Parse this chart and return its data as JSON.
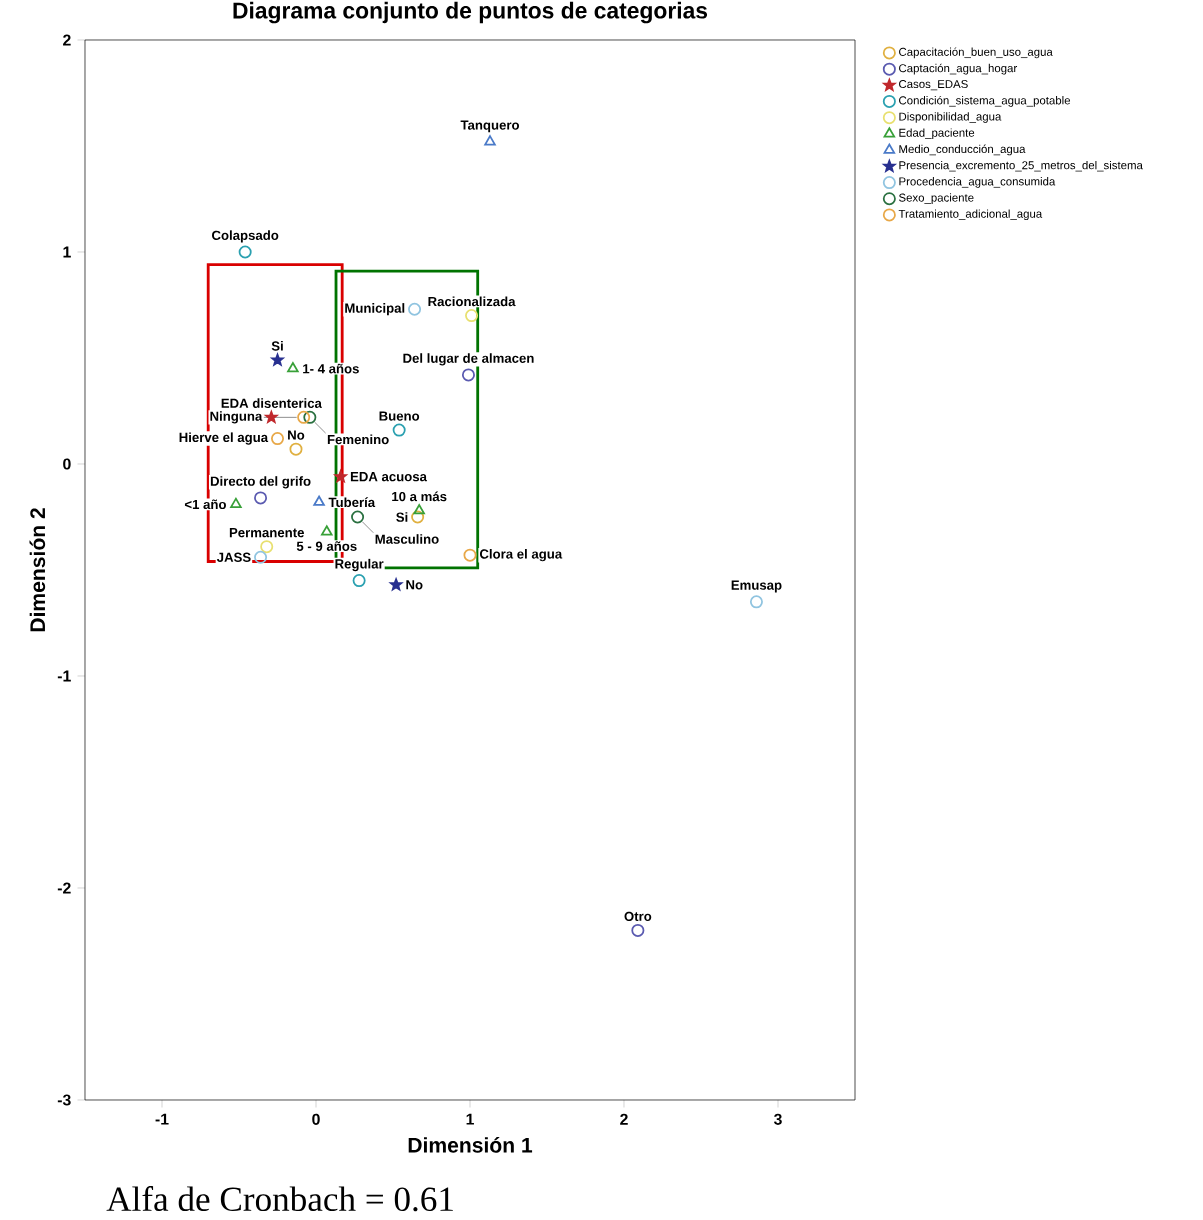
{
  "chart_data": {
    "type": "scatter",
    "title": "Diagrama conjunto de puntos de categorias",
    "xlabel": "Dimensión 1",
    "ylabel": "Dimensión 2",
    "xlim": [
      -1.5,
      3.5
    ],
    "ylim": [
      -3,
      2
    ],
    "xticks": [
      -1,
      0,
      1,
      2,
      3
    ],
    "yticks": [
      -3,
      -2,
      -1,
      0,
      1,
      2
    ],
    "legend": "right",
    "annotations": [
      {
        "text": "No",
        "x": -0.13,
        "y": 0.07
      },
      {
        "text": "Si",
        "x": 0.66,
        "y": -0.25
      },
      {
        "text": "Directo del grifo",
        "x": -0.36,
        "y": -0.16
      },
      {
        "text": "Del lugar de almacen",
        "x": 0.99,
        "y": 0.42
      },
      {
        "text": "Otro",
        "x": 2.09,
        "y": -2.2
      },
      {
        "text": "EDA disenterica",
        "x": -0.29,
        "y": 0.22
      },
      {
        "text": "EDA acuosa",
        "x": 0.16,
        "y": -0.06
      },
      {
        "text": "Colapsado",
        "x": -0.46,
        "y": 1.0
      },
      {
        "text": "Bueno",
        "x": 0.54,
        "y": 0.16
      },
      {
        "text": "Regular",
        "x": 0.28,
        "y": -0.55
      },
      {
        "text": "Permanente",
        "x": -0.32,
        "y": -0.39
      },
      {
        "text": "Racionalizada",
        "x": 1.01,
        "y": 0.7
      },
      {
        "text": "<1 año",
        "x": -0.52,
        "y": -0.19
      },
      {
        "text": "1- 4 años",
        "x": -0.15,
        "y": 0.45
      },
      {
        "text": "5 - 9 años",
        "x": 0.07,
        "y": -0.32
      },
      {
        "text": "10 a más",
        "x": 0.67,
        "y": -0.22
      },
      {
        "text": "Tanquero",
        "x": 1.13,
        "y": 1.52
      },
      {
        "text": "Tubería",
        "x": 0.02,
        "y": -0.18
      },
      {
        "text": "Si",
        "x": -0.25,
        "y": 0.49
      },
      {
        "text": "No",
        "x": 0.52,
        "y": -0.57
      },
      {
        "text": "Municipal",
        "x": 0.64,
        "y": 0.73
      },
      {
        "text": "Emusap",
        "x": 2.86,
        "y": -0.65
      },
      {
        "text": "JASS",
        "x": -0.36,
        "y": -0.44
      },
      {
        "text": "Femenino",
        "x": -0.04,
        "y": 0.22
      },
      {
        "text": "Masculino",
        "x": 0.27,
        "y": -0.25
      },
      {
        "text": "Hierve el agua",
        "x": -0.25,
        "y": 0.12
      },
      {
        "text": "Ninguna",
        "x": -0.08,
        "y": 0.22
      },
      {
        "text": "Clora el agua",
        "x": 1.0,
        "y": -0.43
      },
      "Alfa de Cronbach = 0.61"
    ],
    "series": [
      {
        "name": "Capacitación_buen_uso_agua",
        "color": "#e0b040",
        "marker": "circle",
        "x": [
          -0.13,
          0.66
        ],
        "values": [
          0.07,
          -0.25
        ]
      },
      {
        "name": "Captación_agua_hogar",
        "color": "#5a5ab0",
        "marker": "circle",
        "x": [
          -0.36,
          0.99,
          2.09
        ],
        "values": [
          -0.16,
          0.42,
          -2.2
        ]
      },
      {
        "name": "Casos_EDAS",
        "color": "#c0282c",
        "marker": "star",
        "x": [
          -0.29,
          0.16
        ],
        "values": [
          0.22,
          -0.06
        ]
      },
      {
        "name": "Condición_sistema_agua_potable",
        "color": "#2aa0b0",
        "marker": "circle",
        "x": [
          -0.46,
          0.54,
          0.28
        ],
        "values": [
          1.0,
          0.16,
          -0.55
        ]
      },
      {
        "name": "Disponibilidad_agua",
        "color": "#e8e070",
        "marker": "circle",
        "x": [
          -0.32,
          1.01
        ],
        "values": [
          -0.39,
          0.7
        ]
      },
      {
        "name": "Edad_paciente",
        "color": "#38a038",
        "marker": "triangle",
        "x": [
          -0.52,
          -0.15,
          0.07,
          0.67
        ],
        "values": [
          -0.19,
          0.45,
          -0.32,
          -0.22
        ]
      },
      {
        "name": "Medio_conducción_agua",
        "color": "#4a7ac8",
        "marker": "triangle",
        "x": [
          1.13,
          0.02
        ],
        "values": [
          1.52,
          -0.18
        ]
      },
      {
        "name": "Presencia_excremento_25_metros_del_sistema",
        "color": "#283090",
        "marker": "star",
        "x": [
          -0.25,
          0.52
        ],
        "values": [
          0.49,
          -0.57
        ]
      },
      {
        "name": "Procedencia_agua_consumida",
        "color": "#90c4e0",
        "marker": "circle",
        "x": [
          0.64,
          2.86,
          -0.36
        ],
        "values": [
          0.73,
          -0.65,
          -0.44
        ]
      },
      {
        "name": "Sexo_paciente",
        "color": "#2a7040",
        "marker": "circle",
        "x": [
          -0.04,
          0.27
        ],
        "values": [
          0.22,
          -0.25
        ]
      },
      {
        "name": "Tratamiento_adicional_agua",
        "color": "#e8a848",
        "marker": "circle",
        "x": [
          -0.25,
          -0.08,
          1.0
        ],
        "values": [
          0.12,
          0.22,
          -0.43
        ]
      }
    ]
  }
}
